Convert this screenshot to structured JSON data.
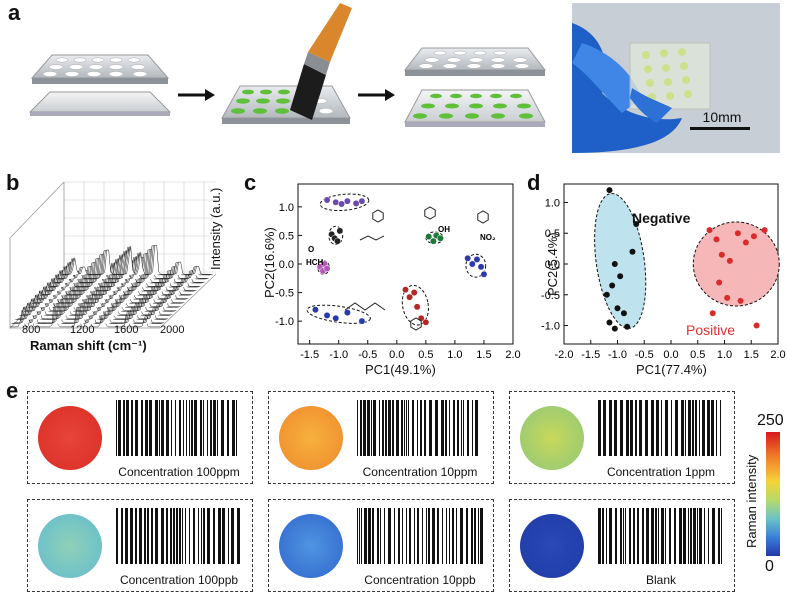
{
  "panels": {
    "a": "a",
    "b": "b",
    "c": "c",
    "d": "d",
    "e": "e"
  },
  "panel_a": {
    "scale_bar": "10mm"
  },
  "panel_b": {
    "xlabel": "Raman shift (cm⁻¹)",
    "ylabel": "Intensity (a.u.)",
    "xticks": [
      "800",
      "1200",
      "1600",
      "2000"
    ]
  },
  "panel_c": {
    "xlabel": "PC1(49.1%)",
    "ylabel": "PC2(16.6%)",
    "xticks": [
      "-1.5",
      "-1.0",
      "-0.5",
      "0.0",
      "0.5",
      "1.0",
      "1.5",
      "2.0"
    ],
    "yticks": [
      "1.0",
      "0.5",
      "0.0",
      "-0.5",
      "-1.0"
    ],
    "mol_labels": {
      "formaldehyde": "HCH",
      "formaldehyde_o": "O",
      "hydroxyl": "OH",
      "nitro": "NO₂",
      "aldehyde_o": "O"
    }
  },
  "panel_d": {
    "xlabel": "PC1(77.4%)",
    "ylabel": "PC2(5.4%)",
    "xticks": [
      "-2.0",
      "-1.5",
      "-1.0",
      "-0.5",
      "0.0",
      "0.5",
      "1.0",
      "1.5",
      "2.0"
    ],
    "yticks": [
      "1.0",
      "0.5",
      "0.0",
      "-0.5",
      "-1.0"
    ],
    "negative_label": "Negative",
    "positive_label": "Positive"
  },
  "panel_e": {
    "items": [
      {
        "label": "Concentration 100ppm",
        "color": "#e23a2e"
      },
      {
        "label": "Concentration 10ppm",
        "color": "#f3a33a"
      },
      {
        "label": "Concentration 1ppm",
        "color": "#a9cf60"
      },
      {
        "label": "Concentration 100ppb",
        "color": "#7cc9c0"
      },
      {
        "label": "Concentration 10ppb",
        "color": "#3f7ed8"
      },
      {
        "label": "Blank",
        "color": "#2341b0"
      }
    ],
    "colorbar": {
      "label": "Raman intensity",
      "max": "250",
      "min": "0"
    }
  },
  "chart_data": [
    {
      "type": "scatter",
      "xlabel": "PC1(49.1%)",
      "ylabel": "PC2(16.6%)",
      "xlim": [
        -1.7,
        2.0
      ],
      "ylim": [
        -1.4,
        1.4
      ],
      "series": [
        {
          "color": "#6a4bb0",
          "x": [
            -1.2,
            -1.05,
            -0.95,
            -0.85,
            -0.7,
            -0.6
          ],
          "y": [
            1.12,
            1.08,
            1.05,
            1.1,
            1.06,
            1.1
          ]
        },
        {
          "color": "#222222",
          "x": [
            -1.12,
            -1.07,
            -1.02,
            -0.98
          ],
          "y": [
            0.52,
            0.45,
            0.4,
            0.58
          ]
        },
        {
          "color": "#b455b8",
          "x": [
            -1.32,
            -1.27,
            -1.24,
            -1.2
          ],
          "y": [
            -0.05,
            -0.12,
            0.0,
            -0.08
          ]
        },
        {
          "color": "#1f7a3a",
          "x": [
            0.55,
            0.63,
            0.68,
            0.75
          ],
          "y": [
            0.48,
            0.4,
            0.5,
            0.45
          ]
        },
        {
          "color": "#b52626",
          "x": [
            0.15,
            0.22,
            0.3,
            0.35,
            0.42,
            0.5
          ],
          "y": [
            -0.45,
            -0.58,
            -0.5,
            -0.75,
            -0.95,
            -1.02
          ]
        },
        {
          "color": "#2a3aa8",
          "x": [
            1.22,
            1.3,
            1.38,
            1.45,
            1.5
          ],
          "y": [
            0.1,
            0.0,
            0.08,
            -0.05,
            -0.18
          ]
        },
        {
          "color": "#2a3aa8",
          "x": [
            -1.4,
            -1.2,
            -1.05,
            -0.85,
            -0.6
          ],
          "y": [
            -0.8,
            -0.9,
            -0.95,
            -0.85,
            -1.0
          ]
        }
      ]
    },
    {
      "type": "scatter",
      "xlabel": "PC1(77.4%)",
      "ylabel": "PC2(5.4%)",
      "xlim": [
        -2.0,
        2.0
      ],
      "ylim": [
        -1.3,
        1.3
      ],
      "series": [
        {
          "name": "Negative",
          "color": "#111111",
          "x": [
            -1.15,
            -0.65,
            -0.72,
            -1.05,
            -0.95,
            -1.1,
            -1.2,
            -1.0,
            -0.88,
            -1.15,
            -1.05,
            -0.82
          ],
          "y": [
            1.2,
            0.65,
            0.2,
            0.0,
            -0.2,
            -0.35,
            -0.5,
            -0.72,
            -0.8,
            -0.95,
            -1.05,
            -1.02
          ]
        },
        {
          "name": "Positive",
          "color": "#d92b2b",
          "x": [
            0.72,
            0.85,
            0.95,
            1.1,
            1.25,
            1.4,
            1.55,
            1.75,
            0.9,
            1.05,
            0.78,
            1.3,
            1.6
          ],
          "y": [
            0.55,
            0.4,
            0.15,
            0.05,
            0.5,
            0.35,
            0.45,
            0.55,
            -0.3,
            -0.55,
            -0.8,
            -0.6,
            -1.0
          ]
        }
      ]
    }
  ]
}
